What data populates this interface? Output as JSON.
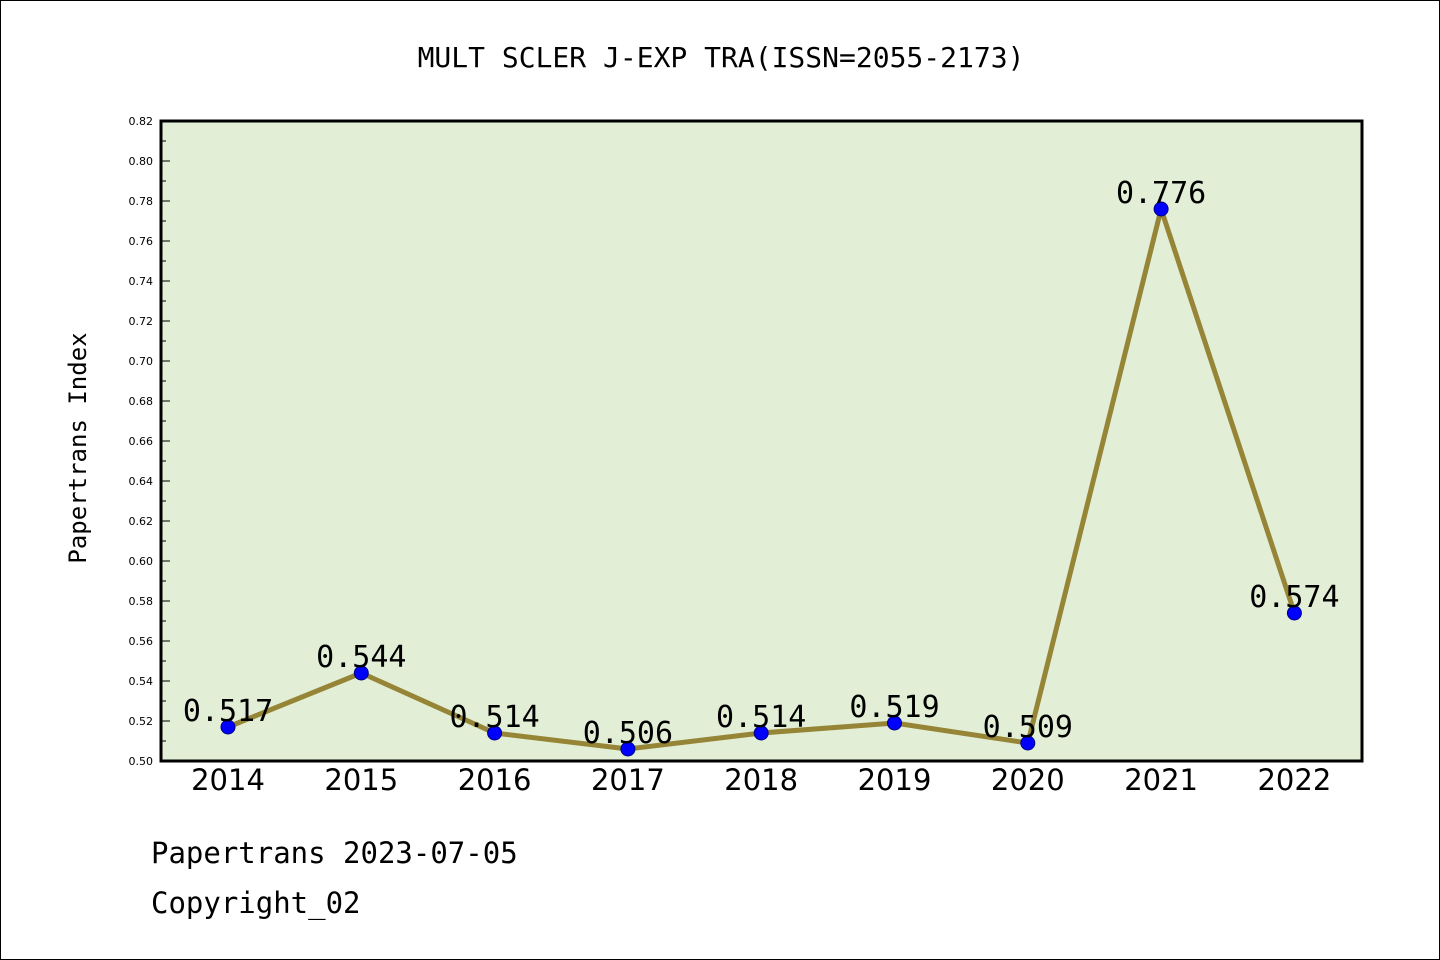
{
  "chart_data": {
    "type": "line",
    "title": "MULT SCLER J-EXP TRA(ISSN=2055-2173)",
    "xlabel": "",
    "ylabel": "Papertrans Index",
    "categories": [
      "2014",
      "2015",
      "2016",
      "2017",
      "2018",
      "2019",
      "2020",
      "2021",
      "2022"
    ],
    "series": [
      {
        "values": [
          0.517,
          0.544,
          0.514,
          0.506,
          0.514,
          0.519,
          0.509,
          0.776,
          0.574
        ],
        "labels": [
          "0.517",
          "0.544",
          "0.514",
          "0.506",
          "0.514",
          "0.519",
          "0.509",
          "0.776",
          "0.574"
        ]
      }
    ],
    "ylim": [
      0.5,
      0.82
    ],
    "yticks": [
      "0.50",
      "0.52",
      "0.54",
      "0.56",
      "0.58",
      "0.60",
      "0.62",
      "0.64",
      "0.66",
      "0.68",
      "0.70",
      "0.72",
      "0.74",
      "0.76",
      "0.78",
      "0.80",
      "0.82"
    ],
    "grid": false,
    "legend": "none",
    "colors": {
      "plot_background": "#e2efd6",
      "line": "#968536",
      "marker": "#0000ff",
      "frame": "#000000"
    }
  },
  "footer": {
    "date_text": "Papertrans 2023-07-05",
    "copyright_text": "Copyright_02"
  }
}
